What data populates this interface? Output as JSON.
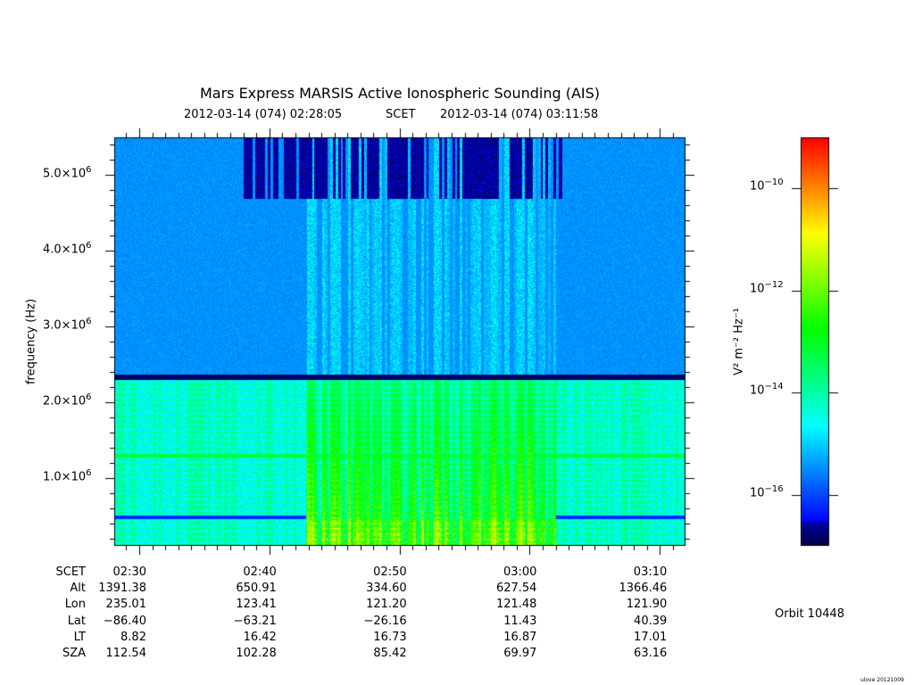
{
  "chart_data": {
    "type": "heatmap",
    "title": "Mars Express MARSIS Active Ionospheric Sounding (AIS)",
    "time_range": {
      "start": "2012-03-14 (074) 02:28:05",
      "label": "SCET",
      "end": "2012-03-14 (074) 03:11:58"
    },
    "ylabel": "frequency (Hz)",
    "ylim": [
      100000,
      5500000
    ],
    "y_ticks": [
      {
        "value": 1000000,
        "mantissa": "1.0×10",
        "exp": "6"
      },
      {
        "value": 2000000,
        "mantissa": "2.0×10",
        "exp": "6"
      },
      {
        "value": 3000000,
        "mantissa": "3.0×10",
        "exp": "6"
      },
      {
        "value": 4000000,
        "mantissa": "4.0×10",
        "exp": "6"
      },
      {
        "value": 5000000,
        "mantissa": "5.0×10",
        "exp": "6"
      }
    ],
    "x_range_minutes": [
      28.08,
      71.97
    ],
    "colorbar": {
      "label": "V² m⁻² Hz⁻¹",
      "scale": "log",
      "range": [
        1e-17,
        1e-09
      ],
      "ticks": [
        {
          "value": 1e-10,
          "base": "10",
          "exp": "−10"
        },
        {
          "value": 1e-12,
          "base": "10",
          "exp": "−12"
        },
        {
          "value": 1e-14,
          "base": "10",
          "exp": "−14"
        },
        {
          "value": 1e-16,
          "base": "10",
          "exp": "−16"
        }
      ]
    },
    "features": {
      "dark_band_frequency": 2330000,
      "bright_line_frequency": 1300000,
      "intense_activity_window": [
        "02:43",
        "03:02"
      ]
    }
  },
  "table": {
    "row_labels": [
      "SCET",
      "Alt",
      "Lon",
      "Lat",
      "LT",
      "SZA"
    ],
    "columns": [
      {
        "minute": 30,
        "values": [
          "02:30",
          "1391.38",
          "235.01",
          "−86.40",
          "8.82",
          "112.54"
        ]
      },
      {
        "minute": 40,
        "values": [
          "02:40",
          "650.91",
          "123.41",
          "−63.21",
          "16.42",
          "102.28"
        ]
      },
      {
        "minute": 50,
        "values": [
          "02:50",
          "334.60",
          "121.20",
          "−26.16",
          "16.73",
          "85.42"
        ]
      },
      {
        "minute": 60,
        "values": [
          "03:00",
          "627.54",
          "121.48",
          "11.43",
          "16.87",
          "69.97"
        ]
      },
      {
        "minute": 70,
        "values": [
          "03:10",
          "1366.46",
          "121.90",
          "40.39",
          "17.01",
          "63.16"
        ]
      }
    ]
  },
  "orbit": "Orbit 10448",
  "credit": "ulove 20121009"
}
